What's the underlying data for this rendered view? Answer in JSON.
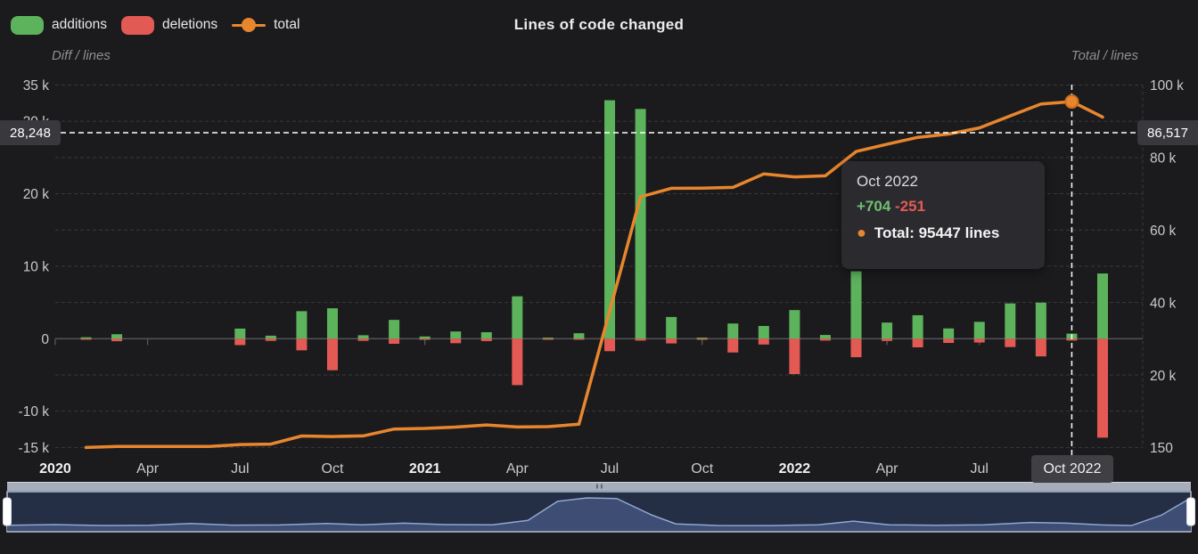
{
  "header": {
    "title": "Lines of code changed",
    "legend": [
      {
        "label": "additions",
        "type": "swatch"
      },
      {
        "label": "deletions",
        "type": "swatch"
      },
      {
        "label": "total",
        "type": "line-marker"
      }
    ]
  },
  "axes": {
    "left": {
      "label": "Diff / lines",
      "ticks": [
        {
          "value": 35000,
          "text": "35 k"
        },
        {
          "value": 30000,
          "text": "30 k"
        },
        {
          "value": 20000,
          "text": "20 k"
        },
        {
          "value": 10000,
          "text": "10 k"
        },
        {
          "value": 0,
          "text": "0"
        },
        {
          "value": -10000,
          "text": "-10 k"
        },
        {
          "value": -15000,
          "text": "-15 k"
        }
      ],
      "gridline_values": [
        35000,
        30000,
        25000,
        20000,
        15000,
        10000,
        5000,
        -5000,
        -10000,
        -15000
      ]
    },
    "right": {
      "label": "Total / lines",
      "ticks": [
        {
          "value": 100000,
          "text": "100 k"
        },
        {
          "value": 80000,
          "text": "80 k"
        },
        {
          "value": 60000,
          "text": "60 k"
        },
        {
          "value": 40000,
          "text": "40 k"
        },
        {
          "value": 20000,
          "text": "20 k"
        },
        {
          "value": 150,
          "text": "150"
        }
      ]
    },
    "x": {
      "ticks": [
        {
          "label": "2020",
          "month_index": -1,
          "bold": true
        },
        {
          "label": "Apr",
          "month_index": 2,
          "bold": false
        },
        {
          "label": "Jul",
          "month_index": 5,
          "bold": false
        },
        {
          "label": "Oct",
          "month_index": 8,
          "bold": false
        },
        {
          "label": "2021",
          "month_index": 11,
          "bold": true
        },
        {
          "label": "Apr",
          "month_index": 14,
          "bold": false
        },
        {
          "label": "Jul",
          "month_index": 17,
          "bold": false
        },
        {
          "label": "Oct",
          "month_index": 20,
          "bold": false
        },
        {
          "label": "2022",
          "month_index": 23,
          "bold": true
        },
        {
          "label": "Apr",
          "month_index": 26,
          "bold": false
        },
        {
          "label": "Jul",
          "month_index": 29,
          "bold": false
        }
      ]
    }
  },
  "crosshair": {
    "left_label": "28,248",
    "right_label": "86,517",
    "x_label": "Oct 2022",
    "hover_month_index": 32
  },
  "tooltip": {
    "title": "Oct 2022",
    "additions": "+704",
    "deletions": "-251",
    "bullet": "●",
    "total_label": "Total: 95447 lines"
  },
  "chart_data": {
    "type": "bar+line combo (Highcharts-style stock chart)",
    "title": "Lines of code changed",
    "x": [
      "Feb 2020",
      "Mar 2020",
      "Apr 2020",
      "May 2020",
      "Jun 2020",
      "Jul 2020",
      "Aug 2020",
      "Sep 2020",
      "Oct 2020",
      "Nov 2020",
      "Dec 2020",
      "Jan 2021",
      "Feb 2021",
      "Mar 2021",
      "Apr 2021",
      "May 2021",
      "Jun 2021",
      "Jul 2021",
      "Aug 2021",
      "Sep 2021",
      "Oct 2021",
      "Nov 2021",
      "Dec 2021",
      "Jan 2022",
      "Feb 2022",
      "Mar 2022",
      "Apr 2022",
      "May 2022",
      "Jun 2022",
      "Jul 2022",
      "Aug 2022",
      "Sep 2022",
      "Oct 2022",
      "Nov 2022"
    ],
    "series": [
      {
        "name": "additions",
        "type": "bar",
        "axis": "left",
        "values": [
          200,
          620,
          0,
          0,
          0,
          1400,
          420,
          3800,
          4200,
          480,
          2600,
          310,
          1000,
          900,
          5850,
          120,
          760,
          32900,
          31700,
          3000,
          60,
          2100,
          1760,
          3950,
          520,
          9300,
          2230,
          3240,
          1420,
          2330,
          4870,
          4980,
          704,
          9000
        ]
      },
      {
        "name": "deletions",
        "type": "bar",
        "axis": "left",
        "values": [
          -30,
          -340,
          0,
          0,
          0,
          -880,
          -300,
          -1600,
          -4350,
          -300,
          -700,
          -150,
          -620,
          -330,
          -6400,
          -40,
          -90,
          -1720,
          -260,
          -650,
          -20,
          -1900,
          -800,
          -4880,
          -260,
          -2550,
          -310,
          -1190,
          -580,
          -520,
          -1150,
          -2440,
          -251,
          -13650
        ]
      },
      {
        "name": "total",
        "type": "line",
        "axis": "right",
        "values": [
          150,
          430,
          430,
          430,
          430,
          950,
          1090,
          3310,
          3160,
          3340,
          5240,
          5400,
          5780,
          6350,
          5800,
          5880,
          6550,
          37750,
          69200,
          71550,
          71600,
          71800,
          75500,
          74700,
          75000,
          81700,
          83700,
          85600,
          86500,
          88200,
          91500,
          94800,
          95447,
          91200
        ]
      }
    ],
    "ylabel_left": "Diff / lines",
    "ylabel_right": "Total / lines",
    "ylim_left": [
      -15000,
      35000
    ],
    "ylim_right": [
      150,
      100000
    ],
    "grid": "horizontal dashed",
    "legend_position": "top-left",
    "hover_point": {
      "x": "Oct 2022",
      "additions": 704,
      "deletions": -251,
      "total": 95447
    }
  },
  "navigator": {
    "outline": [
      [
        0,
        0.16
      ],
      [
        0.04,
        0.18
      ],
      [
        0.08,
        0.155
      ],
      [
        0.12,
        0.16
      ],
      [
        0.155,
        0.21
      ],
      [
        0.19,
        0.165
      ],
      [
        0.23,
        0.17
      ],
      [
        0.27,
        0.21
      ],
      [
        0.3,
        0.175
      ],
      [
        0.335,
        0.22
      ],
      [
        0.37,
        0.18
      ],
      [
        0.41,
        0.175
      ],
      [
        0.44,
        0.3
      ],
      [
        0.465,
        0.85
      ],
      [
        0.49,
        0.95
      ],
      [
        0.515,
        0.93
      ],
      [
        0.545,
        0.45
      ],
      [
        0.565,
        0.2
      ],
      [
        0.6,
        0.155
      ],
      [
        0.645,
        0.15
      ],
      [
        0.685,
        0.175
      ],
      [
        0.715,
        0.28
      ],
      [
        0.745,
        0.175
      ],
      [
        0.785,
        0.16
      ],
      [
        0.825,
        0.175
      ],
      [
        0.865,
        0.24
      ],
      [
        0.895,
        0.22
      ],
      [
        0.925,
        0.17
      ],
      [
        0.95,
        0.155
      ],
      [
        0.975,
        0.45
      ],
      [
        1,
        0.95
      ]
    ]
  },
  "colors": {
    "additions": "#5cb35c",
    "deletions": "#e35a55",
    "total": "#e8862e",
    "background": "#1b1b1d",
    "grid": "#39393d",
    "zero_axis": "#57575c",
    "axis_text": "#c9c9c9",
    "axis_text_bold": "#f2f2f2",
    "crosshair": "#ffffff",
    "nav_bg": "#242e45",
    "nav_fill": "#3e4d73",
    "nav_line": "#90a7d0",
    "nav_frame": "#b9c3d6",
    "nav_track": "#a6aebc",
    "nav_grip": "#5a6270",
    "nav_handle": "#ffffff"
  }
}
